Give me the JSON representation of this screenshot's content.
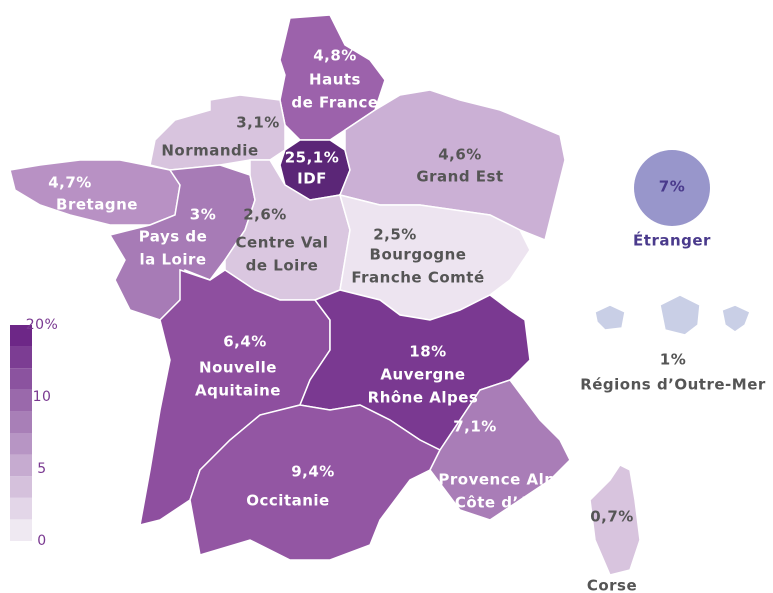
{
  "regions": [
    {
      "name": [
        "Hauts",
        "de France"
      ],
      "value": 4.8,
      "label": "4,8%",
      "color": "#9c62ab"
    },
    {
      "name": [
        "Normandie"
      ],
      "value": 3.1,
      "label": "3,1%",
      "color": "#d8c4de"
    },
    {
      "name": [
        "IDF"
      ],
      "value": 25.1,
      "label": "25,1%",
      "color": "#5b2677"
    },
    {
      "name": [
        "Grand Est"
      ],
      "value": 4.6,
      "label": "4,6%",
      "color": "#cbb0d5"
    },
    {
      "name": [
        "Bretagne"
      ],
      "value": 4.7,
      "label": "4,7%",
      "color": "#b891c4"
    },
    {
      "name": [
        "Pays de",
        "la Loire"
      ],
      "value": 3,
      "label": "3%",
      "color": "#a77bb6"
    },
    {
      "name": [
        "Centre Val",
        "de Loire"
      ],
      "value": 2.6,
      "label": "2,6%",
      "color": "#dac7e0"
    },
    {
      "name": [
        "Bourgogne",
        "Franche Comté"
      ],
      "value": 2.5,
      "label": "2,5%",
      "color": "#ede4f0"
    },
    {
      "name": [
        "Nouvelle",
        "Aquitaine"
      ],
      "value": 6.4,
      "label": "6,4%",
      "color": "#8e4f9f"
    },
    {
      "name": [
        "Auvergne",
        "Rhône Alpes"
      ],
      "value": 18,
      "label": "18%",
      "color": "#7a3991"
    },
    {
      "name": [
        "Occitanie"
      ],
      "value": 9.4,
      "label": "9,4%",
      "color": "#9356a3"
    },
    {
      "name": [
        "Provence Alpes",
        "Côte d’Azur"
      ],
      "value": 7.1,
      "label": "7,1%",
      "color": "#a97db7"
    },
    {
      "name": [
        "Corse"
      ],
      "value": 0.7,
      "label": "0,7%",
      "color": "#d8c4de"
    },
    {
      "name": [
        "Régions d’Outre-Mer"
      ],
      "value": 1,
      "label": "1%",
      "color": "#c9cfe6"
    },
    {
      "name": [
        "Étranger"
      ],
      "value": 7,
      "label": "7%",
      "color": "#9896cb"
    }
  ],
  "legend": {
    "ticks": [
      0,
      5,
      10,
      {
        "value": 20,
        "label": "20%"
      }
    ],
    "colors": [
      "#efe9f2",
      "#e3d6e8",
      "#d5c1dc",
      "#c6abd0",
      "#b795c4",
      "#a87fb7",
      "#9a69ab",
      "#8b539f",
      "#7c3d93",
      "#6d2787"
    ]
  }
}
